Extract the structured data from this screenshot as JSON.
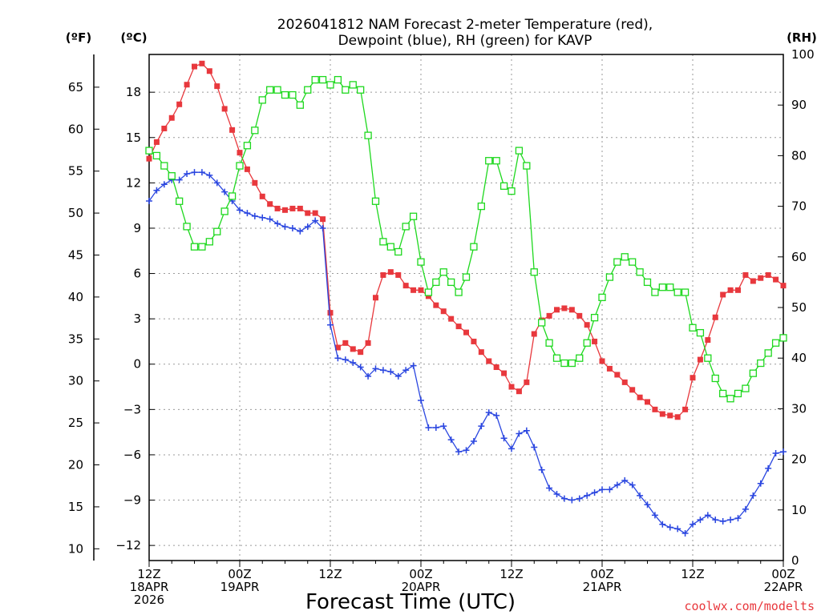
{
  "chart_data": {
    "type": "line",
    "title_lines": [
      "2026041812 NAM Forecast 2-meter Temperature (red),",
      "Dewpoint (blue), RH (green) for KAVP"
    ],
    "xlabel": "Forecast Time (UTC)",
    "credit": "coolwx.com/modelts",
    "units": {
      "fahrenheit": "(ºF)",
      "celsius": "(ºC)",
      "rh": "(RH)"
    },
    "x_range_hours": [
      0,
      84
    ],
    "celsius_range": [
      -13,
      20.5
    ],
    "fahrenheit_ticks": [
      "10",
      "15",
      "20",
      "25",
      "30",
      "35",
      "40",
      "45",
      "50",
      "55",
      "60",
      "65"
    ],
    "celsius_ticks": [
      "−12",
      "−9",
      "−6",
      "−3",
      "0",
      "3",
      "6",
      "9",
      "12",
      "15",
      "18"
    ],
    "rh_range": [
      0,
      100
    ],
    "rh_ticks": [
      "0",
      "10",
      "20",
      "30",
      "40",
      "50",
      "60",
      "70",
      "80",
      "90",
      "100"
    ],
    "x_ticks": [
      {
        "hour": 0,
        "lines": [
          "12Z",
          "18APR",
          "2026"
        ]
      },
      {
        "hour": 12,
        "lines": [
          "00Z",
          "19APR"
        ]
      },
      {
        "hour": 24,
        "lines": [
          "12Z"
        ]
      },
      {
        "hour": 36,
        "lines": [
          "00Z",
          "20APR"
        ]
      },
      {
        "hour": 48,
        "lines": [
          "12Z"
        ]
      },
      {
        "hour": 60,
        "lines": [
          "00Z",
          "21APR"
        ]
      },
      {
        "hour": 72,
        "lines": [
          "12Z"
        ]
      },
      {
        "hour": 84,
        "lines": [
          "00Z",
          "22APR"
        ]
      }
    ],
    "series": [
      {
        "name": "2-meter Temperature (°C)",
        "color": "#e8383d",
        "marker": "filled-square",
        "axis": "celsius",
        "x": [
          0,
          1,
          2,
          3,
          4,
          5,
          6,
          7,
          8,
          9,
          10,
          11,
          12,
          13,
          14,
          15,
          16,
          17,
          18,
          19,
          20,
          21,
          22,
          23,
          24,
          25,
          26,
          27,
          28,
          29,
          30,
          31,
          32,
          33,
          34,
          35,
          36,
          37,
          38,
          39,
          40,
          41,
          42,
          43,
          44,
          45,
          46,
          47,
          48,
          49,
          50,
          51,
          52,
          53,
          54,
          55,
          56,
          57,
          58,
          59,
          60,
          61,
          62,
          63,
          64,
          65,
          66,
          67,
          68,
          69,
          70,
          71,
          72,
          73,
          74,
          75,
          76,
          77,
          78,
          79,
          80,
          81,
          82,
          83,
          84
        ],
        "values": [
          13.6,
          14.7,
          15.6,
          16.3,
          17.2,
          18.5,
          19.7,
          19.9,
          19.4,
          18.4,
          16.9,
          15.5,
          14.0,
          12.9,
          12.0,
          11.1,
          10.6,
          10.3,
          10.2,
          10.3,
          10.3,
          10.0,
          10.0,
          9.6,
          3.4,
          1.1,
          1.4,
          1.0,
          0.8,
          1.4,
          4.4,
          5.9,
          6.1,
          5.9,
          5.2,
          4.9,
          4.9,
          4.5,
          3.9,
          3.5,
          3.0,
          2.5,
          2.1,
          1.5,
          0.8,
          0.2,
          -0.2,
          -0.6,
          -1.5,
          -1.8,
          -1.2,
          2.0,
          2.9,
          3.2,
          3.6,
          3.7,
          3.6,
          3.2,
          2.6,
          1.5,
          0.2,
          -0.3,
          -0.7,
          -1.2,
          -1.7,
          -2.2,
          -2.5,
          -3.0,
          -3.3,
          -3.4,
          -3.5,
          -3.0,
          -0.9,
          0.3,
          1.6,
          3.1,
          4.6,
          4.9,
          4.9,
          5.9,
          5.5,
          5.7,
          5.9,
          5.6,
          5.2
        ]
      },
      {
        "name": "Dewpoint (°C)",
        "color": "#2a46e0",
        "marker": "plus",
        "axis": "celsius",
        "x": [
          0,
          1,
          2,
          3,
          4,
          5,
          6,
          7,
          8,
          9,
          10,
          11,
          12,
          13,
          14,
          15,
          16,
          17,
          18,
          19,
          20,
          21,
          22,
          23,
          24,
          25,
          26,
          27,
          28,
          29,
          30,
          31,
          32,
          33,
          34,
          35,
          36,
          37,
          38,
          39,
          40,
          41,
          42,
          43,
          44,
          45,
          46,
          47,
          48,
          49,
          50,
          51,
          52,
          53,
          54,
          55,
          56,
          57,
          58,
          59,
          60,
          61,
          62,
          63,
          64,
          65,
          66,
          67,
          68,
          69,
          70,
          71,
          72,
          73,
          74,
          75,
          76,
          77,
          78,
          79,
          80,
          81,
          82,
          83,
          84
        ],
        "values": [
          10.8,
          11.5,
          11.9,
          12.2,
          12.2,
          12.6,
          12.7,
          12.7,
          12.5,
          12.0,
          11.4,
          10.8,
          10.2,
          10.0,
          9.8,
          9.7,
          9.6,
          9.3,
          9.1,
          9.0,
          8.8,
          9.1,
          9.5,
          9.0,
          2.6,
          0.4,
          0.3,
          0.1,
          -0.2,
          -0.8,
          -0.3,
          -0.4,
          -0.5,
          -0.8,
          -0.4,
          -0.1,
          -2.4,
          -4.2,
          -4.2,
          -4.1,
          -5.0,
          -5.8,
          -5.7,
          -5.1,
          -4.1,
          -3.2,
          -3.4,
          -4.9,
          -5.6,
          -4.6,
          -4.4,
          -5.5,
          -7.0,
          -8.2,
          -8.6,
          -8.9,
          -9.0,
          -8.9,
          -8.7,
          -8.5,
          -8.3,
          -8.3,
          -8.0,
          -7.7,
          -8.0,
          -8.7,
          -9.3,
          -10.0,
          -10.6,
          -10.8,
          -10.9,
          -11.2,
          -10.6,
          -10.3,
          -10.0,
          -10.3,
          -10.4,
          -10.3,
          -10.2,
          -9.6,
          -8.7,
          -7.9,
          -6.9,
          -5.9,
          -5.8
        ]
      },
      {
        "name": "RH (%)",
        "color": "#1ed81e",
        "marker": "open-square",
        "axis": "rh",
        "x": [
          0,
          1,
          2,
          3,
          4,
          5,
          6,
          7,
          8,
          9,
          10,
          11,
          12,
          13,
          14,
          15,
          16,
          17,
          18,
          19,
          20,
          21,
          22,
          23,
          24,
          25,
          26,
          27,
          28,
          29,
          30,
          31,
          32,
          33,
          34,
          35,
          36,
          37,
          38,
          39,
          40,
          41,
          42,
          43,
          44,
          45,
          46,
          47,
          48,
          49,
          50,
          51,
          52,
          53,
          54,
          55,
          56,
          57,
          58,
          59,
          60,
          61,
          62,
          63,
          64,
          65,
          66,
          67,
          68,
          69,
          70,
          71,
          72,
          73,
          74,
          75,
          76,
          77,
          78,
          79,
          80,
          81,
          82,
          83,
          84
        ],
        "values": [
          81,
          80,
          78,
          76,
          71,
          66,
          62,
          62,
          63,
          65,
          69,
          72,
          78,
          82,
          85,
          91,
          93,
          93,
          92,
          92,
          90,
          93,
          95,
          95,
          94,
          95,
          93,
          94,
          93,
          84,
          71,
          63,
          62,
          61,
          66,
          68,
          59,
          53,
          55,
          57,
          55,
          53,
          56,
          62,
          70,
          79,
          79,
          74,
          73,
          81,
          78,
          57,
          47,
          43,
          40,
          39,
          39,
          40,
          43,
          48,
          52,
          56,
          59,
          60,
          59,
          57,
          55,
          53,
          54,
          54,
          53,
          53,
          46,
          45,
          40,
          36,
          33,
          32,
          33,
          34,
          37,
          39,
          41,
          43,
          44
        ]
      }
    ]
  }
}
